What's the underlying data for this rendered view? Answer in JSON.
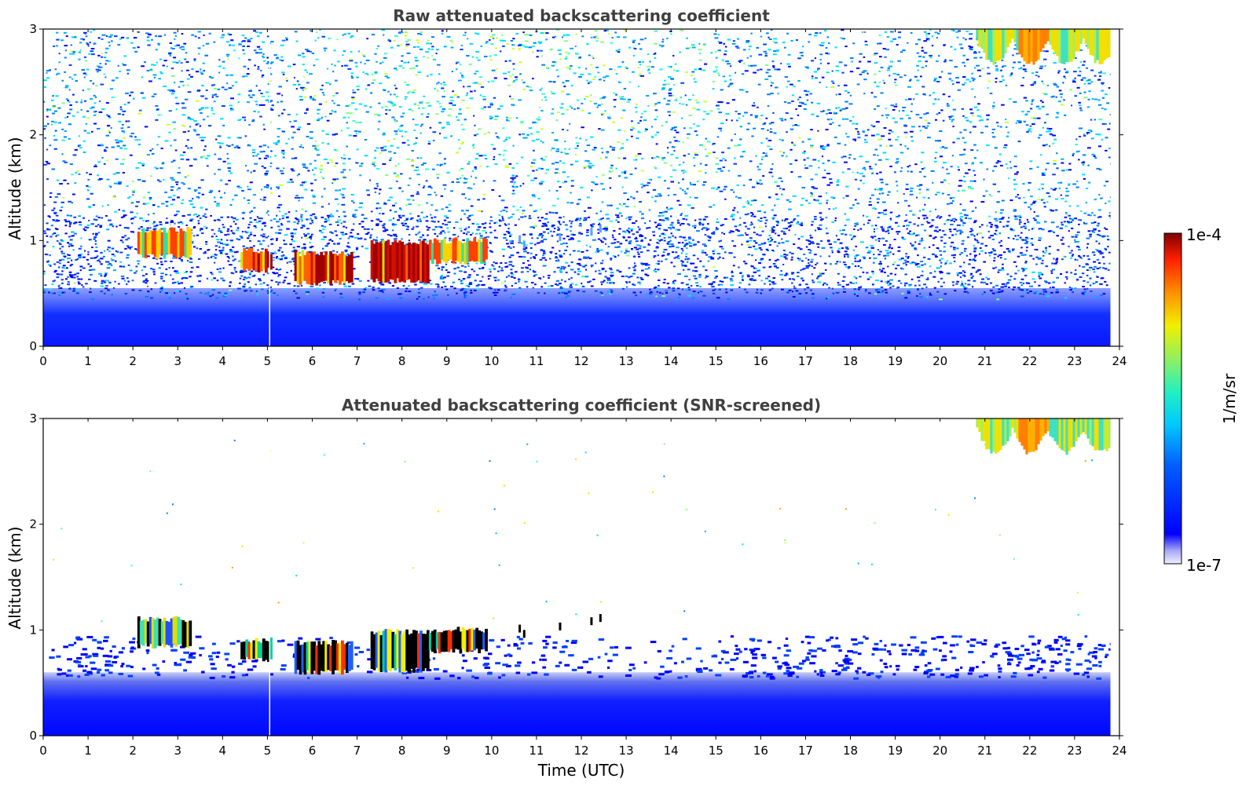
{
  "chart_data": [
    {
      "type": "heatmap",
      "title": "Raw attenuated backscattering coefficient",
      "xlabel": "",
      "ylabel": "Altitude (km)",
      "xlim": [
        0,
        24
      ],
      "ylim": [
        0,
        3
      ],
      "xticks": [
        "0",
        "1",
        "2",
        "3",
        "4",
        "5",
        "6",
        "7",
        "8",
        "9",
        "10",
        "11",
        "12",
        "13",
        "14",
        "15",
        "16",
        "17",
        "18",
        "19",
        "20",
        "21",
        "22",
        "23",
        "24"
      ],
      "yticks": [
        "0",
        "1",
        "2",
        "3"
      ],
      "screening": "raw",
      "features": {
        "boundary_layer_top_km": 0.55,
        "cloud_segments": [
          {
            "t0": 2.1,
            "t1": 3.3,
            "alt_top": 1.1,
            "alt_bottom": 0.85
          },
          {
            "t0": 4.4,
            "t1": 5.1,
            "alt_top": 0.9,
            "alt_bottom": 0.72
          },
          {
            "t0": 5.6,
            "t1": 6.9,
            "alt_top": 0.88,
            "alt_bottom": 0.6
          },
          {
            "t0": 7.3,
            "t1": 8.6,
            "alt_top": 0.98,
            "alt_bottom": 0.62
          },
          {
            "t0": 8.6,
            "t1": 9.9,
            "alt_top": 1.0,
            "alt_bottom": 0.8
          }
        ],
        "high_cloud": {
          "t0": 20.8,
          "t1": 23.8,
          "alt_bottom": 2.7,
          "alt_top": 3.0
        },
        "data_end_time": 23.8
      }
    },
    {
      "type": "heatmap",
      "title": "Attenuated backscattering coefficient (SNR-screened)",
      "xlabel": "Time (UTC)",
      "ylabel": "Altitude (km)",
      "xlim": [
        0,
        24
      ],
      "ylim": [
        0,
        3
      ],
      "xticks": [
        "0",
        "1",
        "2",
        "3",
        "4",
        "5",
        "6",
        "7",
        "8",
        "9",
        "10",
        "11",
        "12",
        "13",
        "14",
        "15",
        "16",
        "17",
        "18",
        "19",
        "20",
        "21",
        "22",
        "23",
        "24"
      ],
      "yticks": [
        "0",
        "1",
        "2",
        "3"
      ],
      "screening": "snr",
      "features": {
        "boundary_layer_top_km": 0.6,
        "cloud_segments": [
          {
            "t0": 2.1,
            "t1": 3.3,
            "alt_top": 1.1,
            "alt_bottom": 0.85
          },
          {
            "t0": 4.4,
            "t1": 5.1,
            "alt_top": 0.9,
            "alt_bottom": 0.72
          },
          {
            "t0": 5.6,
            "t1": 6.9,
            "alt_top": 0.88,
            "alt_bottom": 0.6
          },
          {
            "t0": 7.3,
            "t1": 8.6,
            "alt_top": 0.98,
            "alt_bottom": 0.62
          },
          {
            "t0": 8.6,
            "t1": 9.9,
            "alt_top": 1.0,
            "alt_bottom": 0.8
          }
        ],
        "high_cloud": {
          "t0": 20.8,
          "t1": 23.8,
          "alt_bottom": 2.7,
          "alt_top": 3.0
        },
        "data_end_time": 23.8
      }
    }
  ],
  "colorbar": {
    "label": "1/m/sr",
    "max_label": "1e-4",
    "min_label": "1e-7",
    "colormap": "jet",
    "scale": "log",
    "range": [
      1e-07,
      0.0001
    ]
  }
}
